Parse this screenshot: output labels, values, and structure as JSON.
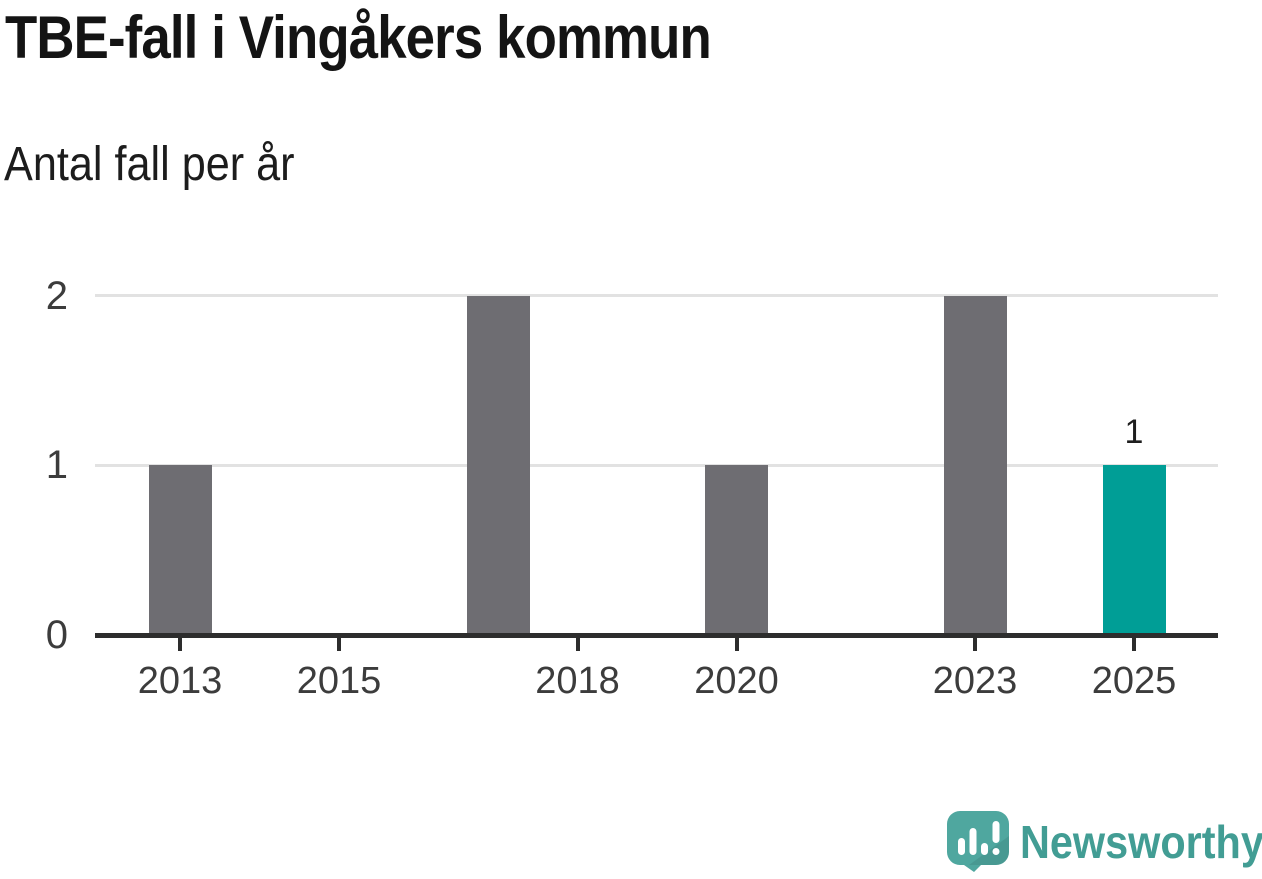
{
  "chart": {
    "title": "TBE-fall i Vingåkers kommun",
    "subtitle": "Antal fall per år"
  },
  "chart_data": {
    "type": "bar",
    "title": "TBE-fall i Vingåkers kommun",
    "subtitle": "Antal fall per år",
    "xlabel": "",
    "ylabel": "Antal fall per år",
    "x": [
      2013,
      2014,
      2015,
      2016,
      2017,
      2018,
      2019,
      2020,
      2021,
      2022,
      2023,
      2024,
      2025
    ],
    "values": [
      1,
      0,
      0,
      0,
      2,
      0,
      0,
      1,
      0,
      0,
      2,
      0,
      1
    ],
    "highlight_x": 2025,
    "annotations": [
      {
        "x": 2025,
        "y": 1,
        "label": "1"
      }
    ],
    "xticks": [
      2013,
      2015,
      2018,
      2020,
      2023,
      2025
    ],
    "yticks": [
      0,
      1,
      2
    ],
    "ylim": [
      0,
      2
    ],
    "grid": true,
    "legend": "none",
    "colors": {
      "bar": "#6E6D72",
      "highlight": "#009E96",
      "grid": "#E2E2E2",
      "axis": "#2D2D2D",
      "tick_label": "#3C3C3C",
      "title": "#141414"
    }
  },
  "branding": {
    "wordmark": "Newsworthy",
    "icon_color": "#4FA79F",
    "wordmark_color": "#429D94"
  }
}
